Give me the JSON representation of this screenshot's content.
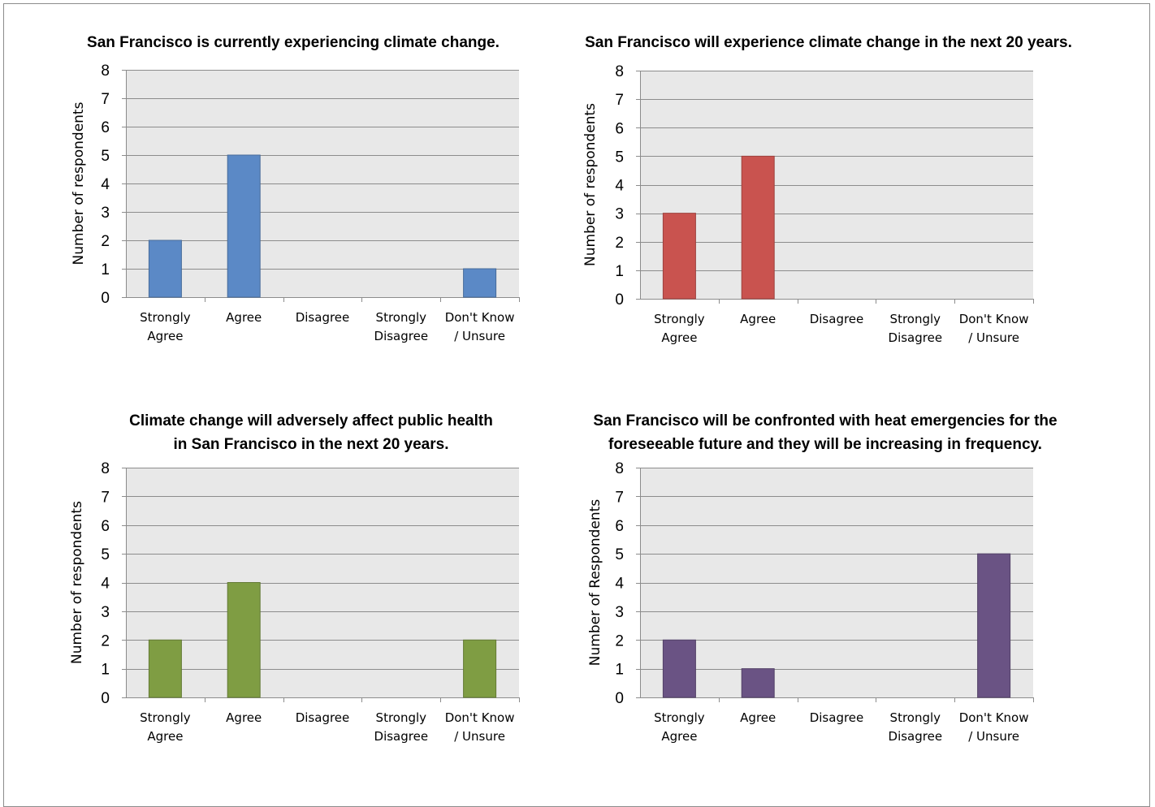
{
  "chart_data": [
    {
      "type": "bar",
      "title": [
        "San Francisco is currently experiencing climate change."
      ],
      "ylabel": "Number of respondents",
      "xlabel": "",
      "categories": [
        [
          "Strongly",
          "Agree"
        ],
        [
          "Agree"
        ],
        [
          "Disagree"
        ],
        [
          "Strongly",
          "Disagree"
        ],
        [
          "Don't Know",
          "/ Unsure"
        ]
      ],
      "values": [
        2,
        5,
        0,
        0,
        1
      ],
      "ylim": [
        0,
        8
      ],
      "yticks": [
        "0",
        "1",
        "2",
        "3",
        "4",
        "5",
        "6",
        "7",
        "8"
      ],
      "color": "#5b89c6",
      "grid": true
    },
    {
      "type": "bar",
      "title": [
        "San Francisco will experience climate change in the next 20 years."
      ],
      "ylabel": "Number of respondents",
      "xlabel": "",
      "categories": [
        [
          "Strongly",
          "Agree"
        ],
        [
          "Agree"
        ],
        [
          "Disagree"
        ],
        [
          "Strongly",
          "Disagree"
        ],
        [
          "Don't Know",
          "/ Unsure"
        ]
      ],
      "values": [
        3,
        5,
        0,
        0,
        0
      ],
      "ylim": [
        0,
        8
      ],
      "yticks": [
        "0",
        "1",
        "2",
        "3",
        "4",
        "5",
        "6",
        "7",
        "8"
      ],
      "color": "#c9534f",
      "grid": true
    },
    {
      "type": "bar",
      "title": [
        "Climate change will adversely affect public health",
        "in San Francisco in the next 20 years."
      ],
      "ylabel": "Number of respondents",
      "xlabel": "",
      "categories": [
        [
          "Strongly",
          "Agree"
        ],
        [
          "Agree"
        ],
        [
          "Disagree"
        ],
        [
          "Strongly",
          "Disagree"
        ],
        [
          "Don't Know",
          "/ Unsure"
        ]
      ],
      "values": [
        2,
        4,
        0,
        0,
        2
      ],
      "ylim": [
        0,
        8
      ],
      "yticks": [
        "0",
        "1",
        "2",
        "3",
        "4",
        "5",
        "6",
        "7",
        "8"
      ],
      "color": "#7f9d43",
      "grid": true
    },
    {
      "type": "bar",
      "title": [
        "San Francisco will be confronted with heat emergencies for the",
        "foreseeable future and they will be increasing in frequency."
      ],
      "ylabel": "Number of Respondents",
      "xlabel": "",
      "categories": [
        [
          "Strongly",
          "Agree"
        ],
        [
          "Agree"
        ],
        [
          "Disagree"
        ],
        [
          "Strongly",
          "Disagree"
        ],
        [
          "Don't Know",
          "/ Unsure"
        ]
      ],
      "values": [
        2,
        1,
        0,
        0,
        5
      ],
      "ylim": [
        0,
        8
      ],
      "yticks": [
        "0",
        "1",
        "2",
        "3",
        "4",
        "5",
        "6",
        "7",
        "8"
      ],
      "color": "#6a5384",
      "grid": true
    }
  ]
}
